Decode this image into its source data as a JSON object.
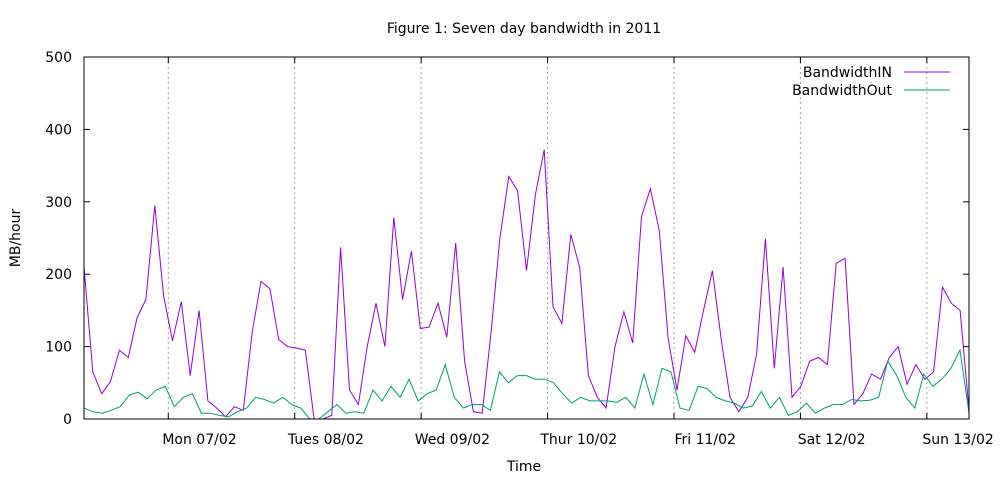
{
  "chart_data": {
    "type": "line",
    "title": "Figure 1: Seven day bandwidth in 2011",
    "xlabel": "Time",
    "ylabel": "MB/hour",
    "ylim": [
      0,
      500
    ],
    "yticks": [
      0,
      100,
      200,
      300,
      400,
      500
    ],
    "x_tick_labels": [
      "Mon 07/02",
      "Tues 08/02",
      "Wed 09/02",
      "Thur 10/02",
      "Fri 11/02",
      "Sat 12/02",
      "Sun 13/02"
    ],
    "grid": "vertical dotted lines at day boundaries",
    "legend_position": "top-right",
    "colors": {
      "BandwidthIN": "#9400d3",
      "BandwidthOut": "#009e73",
      "grid": "#a0a0a0",
      "axis": "#000000"
    },
    "series": [
      {
        "name": "BandwidthIN",
        "values": [
          210,
          65,
          35,
          52,
          95,
          85,
          140,
          165,
          295,
          170,
          108,
          162,
          60,
          150,
          25,
          15,
          3,
          17,
          12,
          120,
          190,
          180,
          110,
          100,
          98,
          95,
          0,
          0,
          5,
          237,
          40,
          20,
          100,
          160,
          100,
          278,
          165,
          232,
          125,
          127,
          160,
          113,
          243,
          80,
          10,
          8,
          120,
          250,
          335,
          315,
          205,
          310,
          372,
          155,
          132,
          255,
          210,
          60,
          30,
          15,
          100,
          148,
          105,
          280,
          318,
          260,
          112,
          40,
          115,
          92,
          150,
          205,
          110,
          30,
          10,
          30,
          90,
          249,
          70,
          210,
          30,
          45,
          80,
          85,
          75,
          215,
          222,
          20,
          35,
          62,
          55,
          85,
          100,
          48,
          75,
          55,
          65,
          182,
          160,
          150,
          12
        ],
        "x_start_hour": 0,
        "x_step_hours": 1.6
      },
      {
        "name": "BandwidthOut",
        "values": [
          15,
          10,
          8,
          12,
          17,
          33,
          37,
          28,
          40,
          45,
          17,
          30,
          35,
          8,
          8,
          5,
          3,
          10,
          15,
          30,
          27,
          22,
          30,
          20,
          15,
          0,
          0,
          10,
          20,
          8,
          10,
          8,
          40,
          25,
          45,
          30,
          55,
          25,
          35,
          40,
          75,
          30,
          15,
          20,
          20,
          12,
          65,
          50,
          60,
          60,
          55,
          55,
          50,
          35,
          22,
          30,
          25,
          25,
          25,
          23,
          30,
          15,
          62,
          20,
          70,
          65,
          15,
          12,
          45,
          42,
          30,
          25,
          22,
          15,
          18,
          38,
          15,
          30,
          5,
          10,
          22,
          8,
          15,
          20,
          20,
          27,
          25,
          26,
          30,
          80,
          60,
          30,
          15,
          62,
          45,
          55,
          70,
          95,
          8
        ],
        "x_start_hour": 0,
        "x_step_hours": 1.6
      }
    ]
  }
}
